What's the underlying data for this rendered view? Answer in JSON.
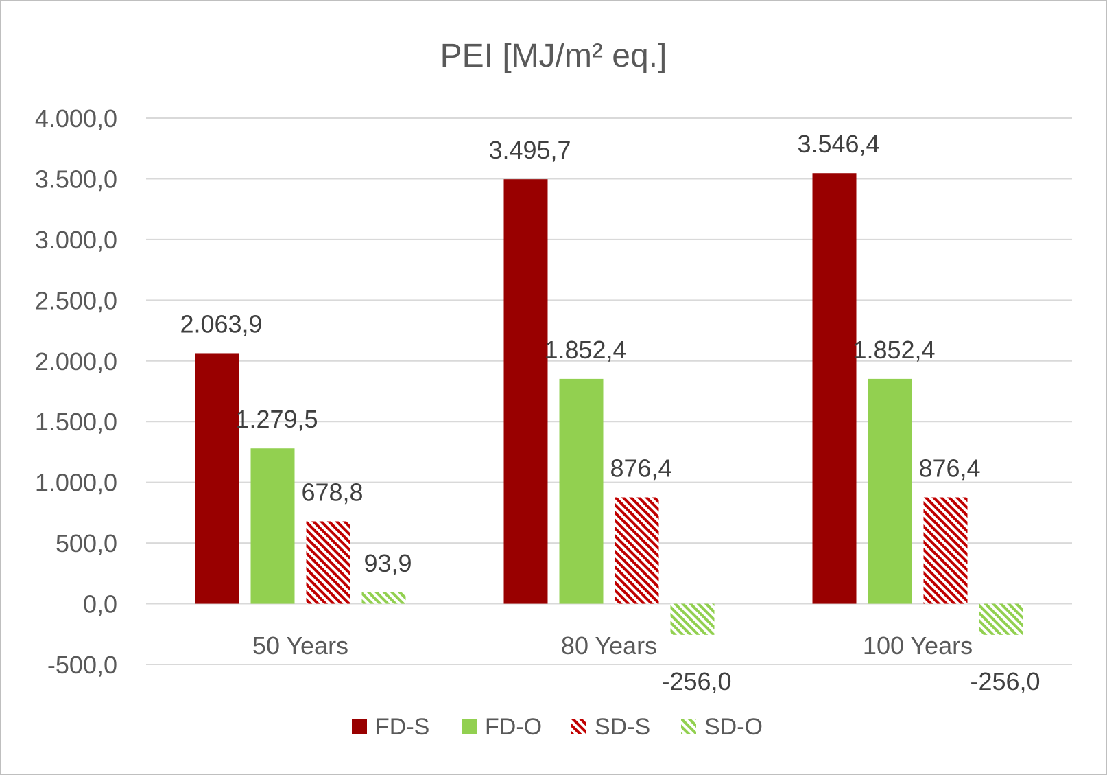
{
  "chart_data": {
    "type": "bar",
    "title": "PEI [MJ/m² eq.]",
    "xlabel": "",
    "ylabel": "",
    "categories": [
      "50 Years",
      "80 Years",
      "100 Years"
    ],
    "ylim": [
      -500,
      4000
    ],
    "yticks": [
      -500,
      0,
      500,
      1000,
      1500,
      2000,
      2500,
      3000,
      3500,
      4000
    ],
    "ytick_labels": [
      "-500,0",
      "0,0",
      "500,0",
      "1.000,0",
      "1.500,0",
      "2.000,0",
      "2.500,0",
      "3.000,0",
      "3.500,0",
      "4.000,0"
    ],
    "grid": true,
    "legend_position": "bottom",
    "series": [
      {
        "name": "FD-S",
        "color": "#990000",
        "pattern": "solid",
        "values": [
          2063.9,
          3495.7,
          3546.4
        ],
        "labels": [
          "2.063,9",
          "3.495,7",
          "3.546,4"
        ]
      },
      {
        "name": "FD-O",
        "color": "#92d050",
        "pattern": "solid",
        "values": [
          1279.5,
          1852.4,
          1852.4
        ],
        "labels": [
          "1.279,5",
          "1.852,4",
          "1.852,4"
        ]
      },
      {
        "name": "SD-S",
        "color": "#c00000",
        "pattern": "hatch",
        "values": [
          678.8,
          876.4,
          876.4
        ],
        "labels": [
          "678,8",
          "876,4",
          "876,4"
        ]
      },
      {
        "name": "SD-O",
        "color": "#92d050",
        "pattern": "hatch",
        "values": [
          93.9,
          -256.0,
          -256.0
        ],
        "labels": [
          "93,9",
          "-256,0",
          "-256,0"
        ]
      }
    ]
  }
}
